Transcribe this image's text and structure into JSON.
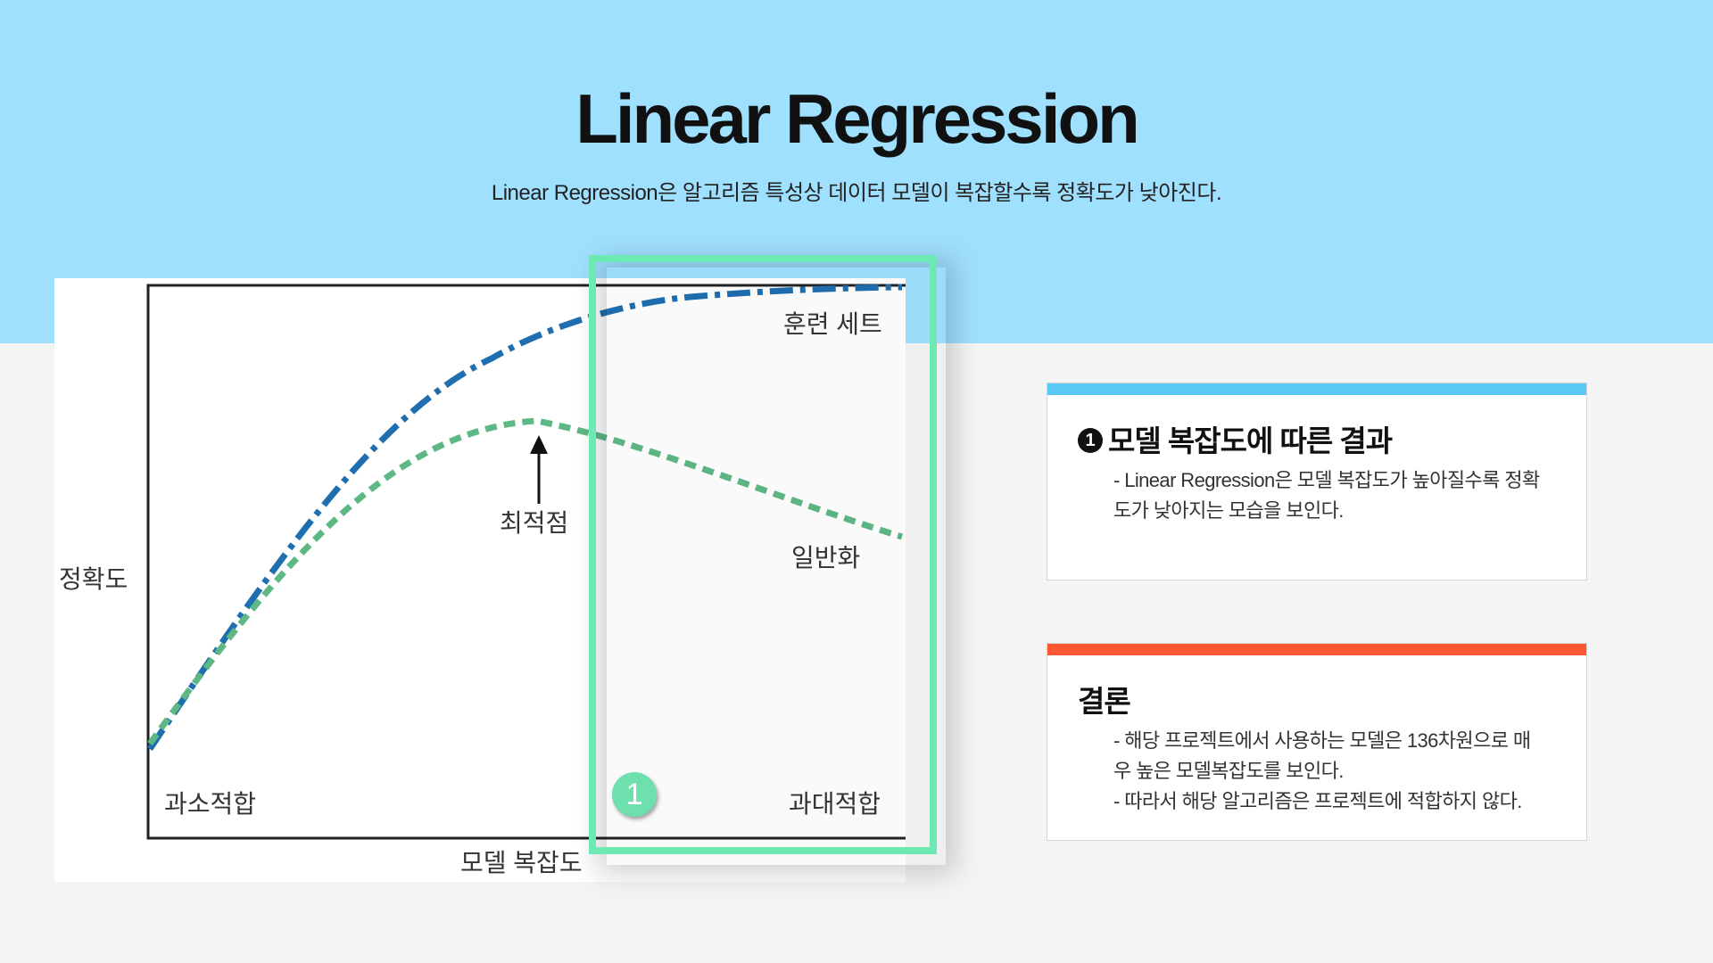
{
  "header": {
    "title": "Linear Regression",
    "subtitle": "Linear Regression은 알고리즘 특성상 데이터 모델이 복잡할수록 정확도가 낮아진다."
  },
  "diagram": {
    "y_axis_label": "정확도",
    "x_axis_label": "모델 복잡도",
    "curve_train_label": "훈련 세트",
    "curve_general_label": "일반화",
    "optimum_label": "최적점",
    "underfit_label": "과소적합",
    "overfit_label": "과대적합",
    "marker": "1",
    "colors": {
      "train_curve": "#1f6fb0",
      "general_curve": "#5db884",
      "highlight": "#6deab4"
    }
  },
  "cards": [
    {
      "badge": "1",
      "title": "모델 복잡도에 따른 결과",
      "bar_color": "#5ac8f5",
      "lines": [
        "- Linear Regression은 모델 복잡도가 높아질수록 정확",
        "도가 낮아지는 모습을 보인다."
      ]
    },
    {
      "title": "결론",
      "bar_color": "#ff5733",
      "lines": [
        "- 해당 프로젝트에서 사용하는 모델은 136차원으로 매",
        "우 높은 모델복잡도를 보인다.",
        "- 따라서 해당 알고리즘은 프로젝트에 적합하지 않다."
      ]
    }
  ]
}
